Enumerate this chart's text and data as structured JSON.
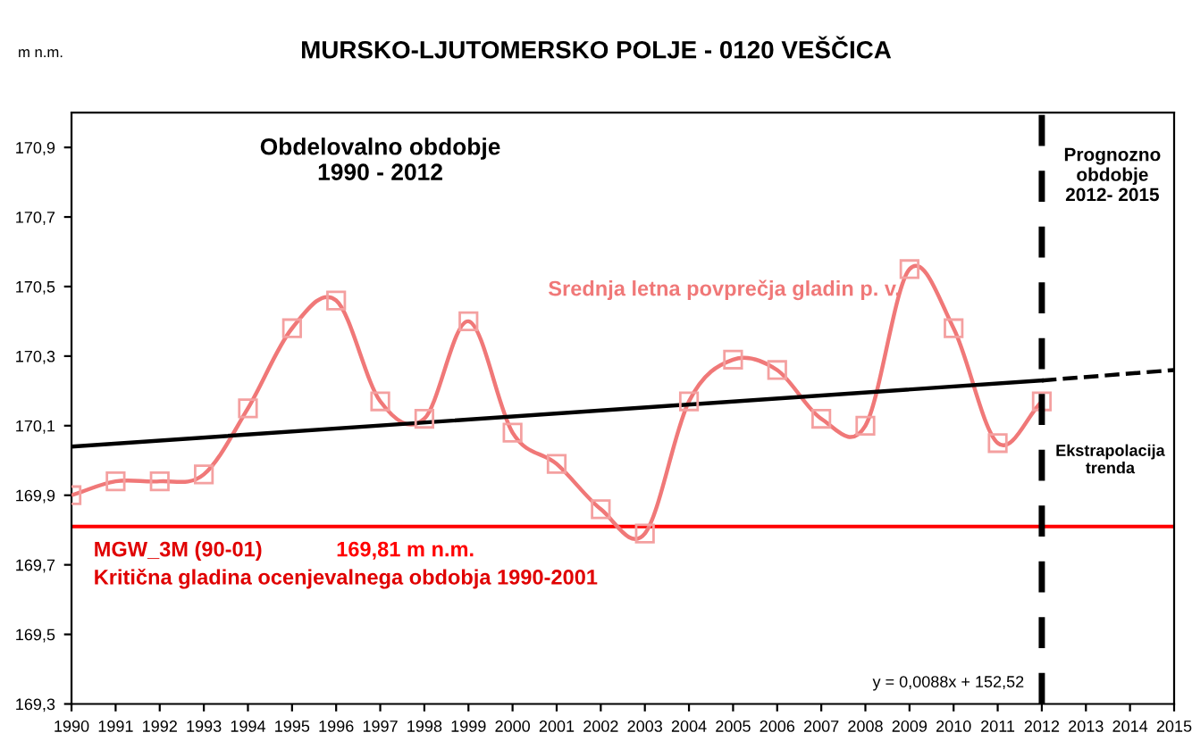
{
  "chart_data": {
    "type": "line",
    "title": "MURSKO-LJUTOMERSKO POLJE - 0120 VEŠČICA",
    "ylabel": "m n.m.",
    "xlim": [
      1990,
      2015
    ],
    "xticks": [
      1990,
      1991,
      1992,
      1993,
      1994,
      1995,
      1996,
      1997,
      1998,
      1999,
      2000,
      2001,
      2002,
      2003,
      2004,
      2005,
      2006,
      2007,
      2008,
      2009,
      2010,
      2011,
      2012,
      2013,
      2014,
      2015
    ],
    "ylim": [
      169.3,
      171.0
    ],
    "yticks": [
      {
        "value": 169.3,
        "label": "169,3"
      },
      {
        "value": 169.5,
        "label": "169,5"
      },
      {
        "value": 169.7,
        "label": "169,7"
      },
      {
        "value": 169.9,
        "label": "169,9"
      },
      {
        "value": 170.1,
        "label": "170,1"
      },
      {
        "value": 170.3,
        "label": "170,3"
      },
      {
        "value": 170.5,
        "label": "170,5"
      },
      {
        "value": 170.7,
        "label": "170,7"
      },
      {
        "value": 170.9,
        "label": "170,9"
      }
    ],
    "grid": false,
    "legend": false,
    "series": [
      {
        "name": "Srednja letna povprečja gladin p. v.",
        "color": "#f07878",
        "marker": "square",
        "line_style": "solid",
        "x": [
          1990,
          1991,
          1992,
          1993,
          1994,
          1995,
          1996,
          1997,
          1998,
          1999,
          2000,
          2001,
          2002,
          2003,
          2004,
          2005,
          2006,
          2007,
          2008,
          2009,
          2010,
          2011,
          2012
        ],
        "values": [
          169.9,
          169.94,
          169.94,
          169.96,
          170.15,
          170.38,
          170.46,
          170.17,
          170.12,
          170.4,
          170.08,
          169.99,
          169.86,
          169.79,
          170.17,
          170.29,
          170.26,
          170.12,
          170.1,
          170.55,
          170.38,
          170.05,
          170.17
        ]
      },
      {
        "color": "#000000",
        "marker": "none",
        "line_style": "solid",
        "x": [
          1990,
          2012
        ],
        "values": [
          170.04,
          170.23
        ]
      },
      {
        "color": "#000000",
        "marker": "none",
        "line_style": "dashed",
        "x": [
          2012,
          2015
        ],
        "values": [
          170.23,
          170.26
        ]
      }
    ],
    "ref_lines": [
      {
        "axis": "y",
        "value": 169.81,
        "label": "169,81 m n.m.",
        "color": "#ff0000",
        "line_style": "solid"
      },
      {
        "axis": "x",
        "value": 2012,
        "color": "#000000",
        "line_style": "dashed"
      }
    ],
    "annotations": [
      "Obdelovalno obdobje\n1990 - 2012",
      "Prognozno\nobdobje\n2012- 2015",
      "Ekstrapolacija\ntrenda",
      "y = 0,0088x + 152,52",
      "MGW_3M (90-01)",
      "Kritična gladina ocenjevalnega obdobja 1990-2001"
    ]
  }
}
